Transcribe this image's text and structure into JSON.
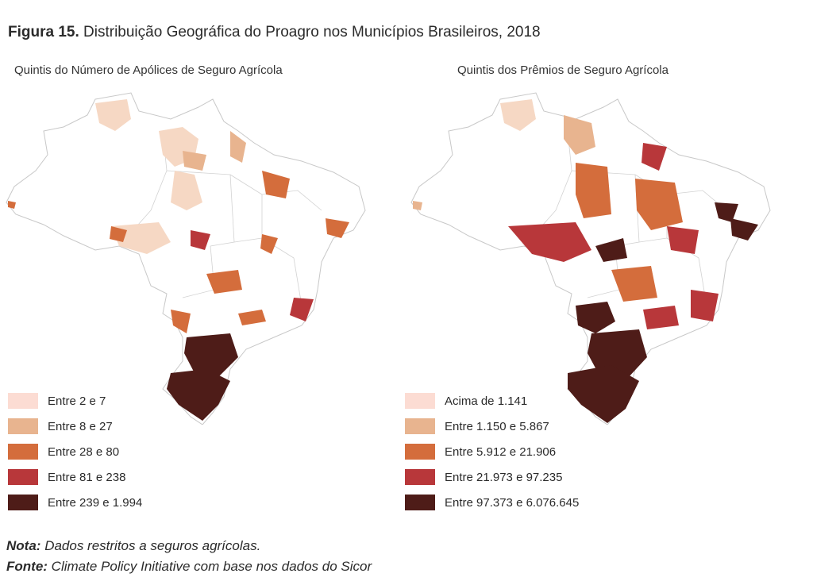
{
  "header": {
    "figure_label": "Figura 15.",
    "title": "Distribuição Geográfica do Proagro nos Municípios Brasileiros, 2018"
  },
  "maps": [
    {
      "subtitle": "Quintis do Número de Apólices de Seguro Agrícola",
      "legend": [
        {
          "label": "Entre 2 e 7",
          "color": "#fcdcd3"
        },
        {
          "label": "Entre 8 e 27",
          "color": "#e8b48f"
        },
        {
          "label": "Entre 28 e 80",
          "color": "#d46d3c"
        },
        {
          "label": "Entre 81 e 238",
          "color": "#b8373a"
        },
        {
          "label": "Entre 239 e 1.994",
          "color": "#4e1c18"
        }
      ]
    },
    {
      "subtitle": "Quintis dos Prêmios de Seguro Agrícola",
      "legend": [
        {
          "label": "Acima de 1.141",
          "color": "#fcdcd3"
        },
        {
          "label": "Entre 1.150 e 5.867",
          "color": "#e8b48f"
        },
        {
          "label": "Entre 5.912 e 21.906",
          "color": "#d46d3c"
        },
        {
          "label": "Entre 21.973 e 97.235",
          "color": "#b8373a"
        },
        {
          "label": "Entre 97.373 e 6.076.645",
          "color": "#4e1c18"
        }
      ]
    }
  ],
  "footer": {
    "note_label": "Nota:",
    "note_text": "Dados restritos a seguros agrícolas.",
    "source_label": "Fonte:",
    "source_text": "Climate Policy Initiative com base nos dados do Sicor"
  }
}
